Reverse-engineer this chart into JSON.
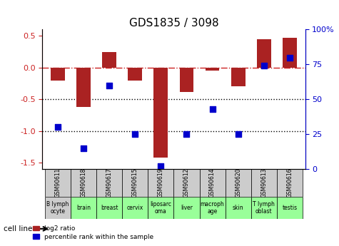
{
  "title": "GDS1835 / 3098",
  "samples": [
    "GSM90611",
    "GSM90618",
    "GSM90617",
    "GSM90615",
    "GSM90619",
    "GSM90612",
    "GSM90614",
    "GSM90620",
    "GSM90613",
    "GSM90616"
  ],
  "cell_lines": [
    "B lymph\nocyte",
    "brain",
    "breast",
    "cervix",
    "liposarc\noma",
    "liver",
    "macroph\nage",
    "skin",
    "T lymph\noblast",
    "testis"
  ],
  "cell_colors": [
    "#cccccc",
    "#99ff99",
    "#99ff99",
    "#99ff99",
    "#99ff99",
    "#99ff99",
    "#99ff99",
    "#99ff99",
    "#99ff99",
    "#99ff99"
  ],
  "log2_ratio": [
    -0.2,
    -0.62,
    0.25,
    -0.2,
    -1.42,
    -0.38,
    -0.05,
    -0.3,
    0.45,
    0.47
  ],
  "percentile_rank": [
    30,
    15,
    60,
    25,
    2,
    25,
    43,
    25,
    74,
    80
  ],
  "bar_color": "#aa2222",
  "dot_color": "#0000cc",
  "ylim_left": [
    -1.6,
    0.6
  ],
  "ylim_right": [
    0,
    100
  ],
  "yticks_left": [
    0.5,
    0.0,
    -0.5,
    -1.0,
    -1.5
  ],
  "yticks_right": [
    100,
    75,
    50,
    25,
    0
  ],
  "hline_zero": 0,
  "hlines_dotted": [
    -0.5,
    -1.0
  ],
  "legend_red": "log2 ratio",
  "legend_blue": "percentile rank within the sample"
}
